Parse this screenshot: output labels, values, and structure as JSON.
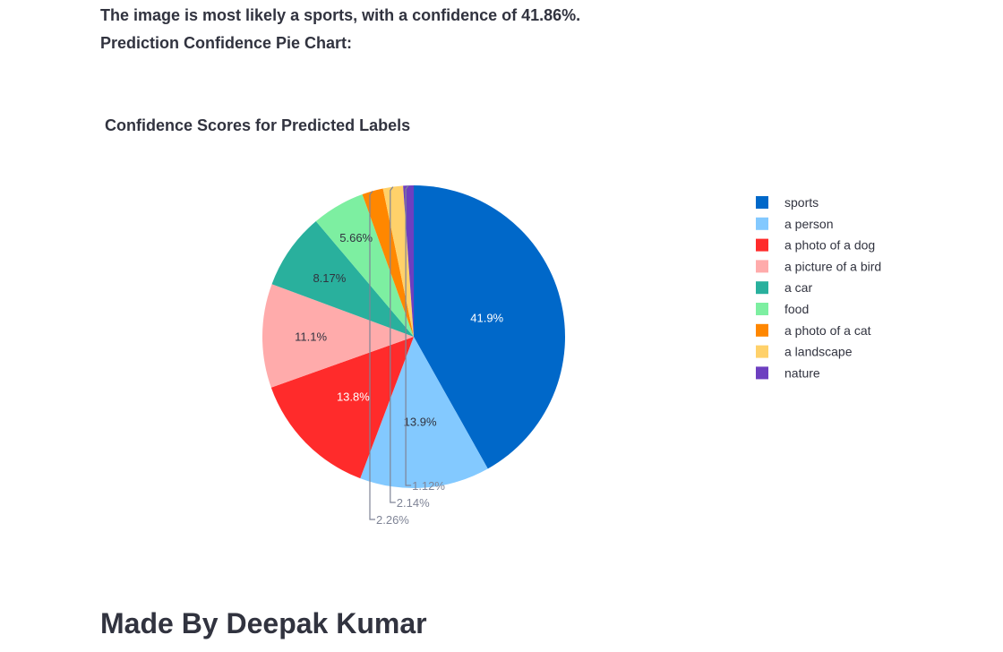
{
  "prediction": {
    "result_text": "The image is most likely a sports, with a confidence of 41.86%.",
    "chart_heading": "Prediction Confidence Pie Chart:"
  },
  "chart_data": {
    "type": "pie",
    "title": "Confidence Scores for Predicted Labels",
    "legend_position": "right",
    "slices": [
      {
        "label": "sports",
        "value": 41.86,
        "display": "41.9%",
        "color": "#0068c9",
        "label_color": "#ffffff",
        "outside": false
      },
      {
        "label": "a person",
        "value": 13.9,
        "display": "13.9%",
        "color": "#83c9ff",
        "label_color": "#31333f",
        "outside": false
      },
      {
        "label": "a photo of a dog",
        "value": 13.8,
        "display": "13.8%",
        "color": "#ff2b2b",
        "label_color": "#ffffff",
        "outside": false
      },
      {
        "label": "a picture of a bird",
        "value": 11.1,
        "display": "11.1%",
        "color": "#ffabab",
        "label_color": "#31333f",
        "outside": false
      },
      {
        "label": "a car",
        "value": 8.17,
        "display": "8.17%",
        "color": "#29b09d",
        "label_color": "#31333f",
        "outside": false
      },
      {
        "label": "food",
        "value": 5.66,
        "display": "5.66%",
        "color": "#7defa1",
        "label_color": "#31333f",
        "outside": false
      },
      {
        "label": "a photo of a cat",
        "value": 2.26,
        "display": "2.26%",
        "color": "#ff8700",
        "label_color": "#7f8496",
        "outside": true
      },
      {
        "label": "a landscape",
        "value": 2.14,
        "display": "2.14%",
        "color": "#ffd16a",
        "label_color": "#7f8496",
        "outside": true
      },
      {
        "label": "nature",
        "value": 1.12,
        "display": "1.12%",
        "color": "#6d3fc0",
        "label_color": "#7f8496",
        "outside": true
      }
    ]
  },
  "footer": {
    "author_text": "Made By Deepak Kumar"
  }
}
